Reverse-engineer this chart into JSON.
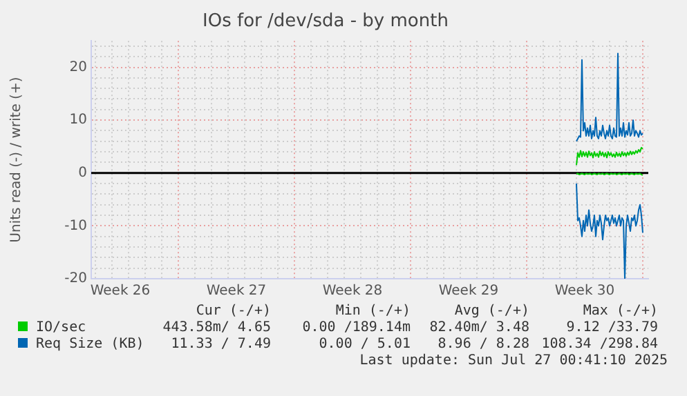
{
  "chart_data": {
    "type": "line",
    "title": "IOs for /dev/sda - by month",
    "ylabel": "Units read (-) / write (+)",
    "x": [
      "2025-07-23T00:00",
      "2025-07-23T02:00",
      "2025-07-23T04:00",
      "2025-07-23T06:00",
      "2025-07-23T08:00",
      "2025-07-23T10:00",
      "2025-07-23T12:00",
      "2025-07-23T14:00",
      "2025-07-23T16:00",
      "2025-07-23T18:00",
      "2025-07-23T20:00",
      "2025-07-23T22:00",
      "2025-07-24T00:00",
      "2025-07-24T02:00",
      "2025-07-24T04:00",
      "2025-07-24T06:00",
      "2025-07-24T08:00",
      "2025-07-24T10:00",
      "2025-07-24T12:00",
      "2025-07-24T14:00",
      "2025-07-24T16:00",
      "2025-07-24T18:00",
      "2025-07-24T20:00",
      "2025-07-24T22:00",
      "2025-07-25T00:00",
      "2025-07-25T02:00",
      "2025-07-25T04:00",
      "2025-07-25T06:00",
      "2025-07-25T08:00",
      "2025-07-25T10:00",
      "2025-07-25T12:00",
      "2025-07-25T14:00",
      "2025-07-25T16:00",
      "2025-07-25T18:00",
      "2025-07-25T20:00",
      "2025-07-25T22:00",
      "2025-07-26T00:00",
      "2025-07-26T02:00",
      "2025-07-26T04:00",
      "2025-07-26T06:00",
      "2025-07-26T08:00",
      "2025-07-26T10:00",
      "2025-07-26T12:00",
      "2025-07-26T14:00",
      "2025-07-26T16:00",
      "2025-07-26T18:00",
      "2025-07-26T20:00",
      "2025-07-26T22:00",
      "2025-07-27T00:00"
    ],
    "series": [
      {
        "name": "IO/sec",
        "color": "#00cc00",
        "values": [
          1.5,
          3.8,
          3,
          4.2,
          3.1,
          4,
          3.2,
          3.9,
          3,
          4.1,
          3.3,
          3.8,
          2.9,
          4,
          3.2,
          3.7,
          3,
          4.1,
          3.3,
          3.9,
          3.1,
          3.8,
          2.9,
          4,
          3.3,
          3.8,
          3.1,
          3.6,
          3,
          3.9,
          3.2,
          3.7,
          3.1,
          4,
          3.3,
          3.8,
          3.2,
          3.9,
          3.4,
          4.1,
          3.5,
          4,
          3.6,
          4.2,
          3.8,
          4.4,
          4,
          4.8,
          4.6
        ]
      },
      {
        "color": "#00cc00",
        "values": [
          -0.2,
          -0.1,
          -0.3,
          -0.2,
          -0.1,
          -0.2,
          -0.3,
          -0.1,
          -0.2,
          -0.2,
          -0.1,
          -0.3,
          -0.2,
          -0.1,
          -0.2,
          -0.3,
          -0.1,
          -0.2,
          -0.2,
          -0.1,
          -0.3,
          -0.2,
          -0.1,
          -0.2,
          -0.3,
          -0.1,
          -0.2,
          -0.2,
          -0.1,
          -0.3,
          -0.2,
          -0.1,
          -0.2,
          -0.3,
          -0.1,
          -0.2,
          -0.2,
          -0.1,
          -0.3,
          -0.2,
          -0.1,
          -0.2,
          -0.3,
          -0.1,
          -0.2,
          -0.2,
          -0.1,
          -0.3,
          -0.4
        ]
      },
      {
        "name": "Req Size (KB)",
        "color": "#0066b3",
        "values": [
          6,
          6.5,
          7,
          6.8,
          21.4,
          8,
          9.5,
          7,
          8.5,
          7,
          9,
          6.5,
          8,
          7,
          10.5,
          7,
          6.5,
          8,
          7,
          9,
          7.5,
          6.5,
          8,
          7,
          9,
          7,
          6.5,
          8.5,
          7,
          6.8,
          22.6,
          7,
          8.5,
          7,
          9.5,
          6.8,
          8,
          7.2,
          9.5,
          7,
          7.5,
          10,
          7,
          8,
          7.5,
          6.8,
          8,
          7.2,
          7.5
        ]
      },
      {
        "color": "#0066b3",
        "values": [
          -2,
          -9,
          -8.5,
          -10,
          -12,
          -9,
          -11,
          -8,
          -10,
          -7,
          -9.5,
          -11,
          -10,
          -8,
          -12,
          -9,
          -10,
          -8,
          -9.5,
          -12.6,
          -10,
          -8,
          -9,
          -8.5,
          -10,
          -9,
          -8,
          -9.5,
          -8.5,
          -10,
          -9,
          -8,
          -10,
          -8.5,
          -9,
          -19.9,
          -10,
          -8,
          -9.5,
          -11,
          -8.5,
          -9,
          -8,
          -10,
          -9,
          -7,
          -6,
          -8,
          -11.3
        ]
      }
    ],
    "xlim": [
      "2025-06-23T18:00",
      "2025-07-27T08:00"
    ],
    "xticks": [
      {
        "value": "2025-06-24",
        "label": null
      },
      {
        "value": "2025-06-25",
        "label": null
      },
      {
        "value": "2025-06-25T12:00",
        "label": "Week 26"
      },
      {
        "value": "2025-06-26",
        "label": null
      },
      {
        "value": "2025-06-27",
        "label": null
      },
      {
        "value": "2025-06-28",
        "label": null
      },
      {
        "value": "2025-06-29",
        "label": null
      },
      {
        "value": "2025-06-30",
        "label": null
      },
      {
        "value": "2025-07-01",
        "label": null
      },
      {
        "value": "2025-07-02",
        "label": null
      },
      {
        "value": "2025-07-02T12:00",
        "label": "Week 27"
      },
      {
        "value": "2025-07-03",
        "label": null
      },
      {
        "value": "2025-07-04",
        "label": null
      },
      {
        "value": "2025-07-05",
        "label": null
      },
      {
        "value": "2025-07-06",
        "label": null
      },
      {
        "value": "2025-07-07",
        "label": null
      },
      {
        "value": "2025-07-08",
        "label": null
      },
      {
        "value": "2025-07-09",
        "label": null
      },
      {
        "value": "2025-07-09T12:00",
        "label": "Week 28"
      },
      {
        "value": "2025-07-10",
        "label": null
      },
      {
        "value": "2025-07-11",
        "label": null
      },
      {
        "value": "2025-07-12",
        "label": null
      },
      {
        "value": "2025-07-13",
        "label": null
      },
      {
        "value": "2025-07-14",
        "label": null
      },
      {
        "value": "2025-07-15",
        "label": null
      },
      {
        "value": "2025-07-16",
        "label": null
      },
      {
        "value": "2025-07-16T12:00",
        "label": "Week 29"
      },
      {
        "value": "2025-07-17",
        "label": null
      },
      {
        "value": "2025-07-18",
        "label": null
      },
      {
        "value": "2025-07-19",
        "label": null
      },
      {
        "value": "2025-07-20",
        "label": null
      },
      {
        "value": "2025-07-21",
        "label": null
      },
      {
        "value": "2025-07-22",
        "label": null
      },
      {
        "value": "2025-07-23",
        "label": null
      },
      {
        "value": "2025-07-23T12:00",
        "label": "Week 30"
      },
      {
        "value": "2025-07-24",
        "label": null
      },
      {
        "value": "2025-07-25",
        "label": null
      },
      {
        "value": "2025-07-26",
        "label": null
      },
      {
        "value": "2025-07-27",
        "label": null
      }
    ],
    "ylim": [
      -20,
      25
    ],
    "yticks": [
      -20,
      {
        "value": -18,
        "label": null
      },
      {
        "value": -16,
        "label": null
      },
      {
        "value": -14,
        "label": null
      },
      {
        "value": -12,
        "label": null
      },
      -10,
      {
        "value": -8,
        "label": null
      },
      {
        "value": -6,
        "label": null
      },
      {
        "value": -4,
        "label": null
      },
      {
        "value": -2,
        "label": null
      },
      0,
      {
        "value": 2,
        "label": null
      },
      {
        "value": 4,
        "label": null
      },
      {
        "value": 6,
        "label": null
      },
      {
        "value": 8,
        "label": null
      },
      10,
      {
        "value": 12,
        "label": null
      },
      {
        "value": 14,
        "label": null
      },
      {
        "value": 16,
        "label": null
      },
      {
        "value": 18,
        "label": null
      },
      20,
      {
        "value": 22,
        "label": null
      },
      {
        "value": 24,
        "label": null
      }
    ],
    "ref_lines": [
      {
        "axis": "y",
        "value": 0,
        "color": "#000000"
      }
    ],
    "grid": true,
    "legend": "bottom",
    "marker": "none",
    "line_style": "solid",
    "annotations": [
      "Cur (-/+)",
      "Min (-/+)",
      "Avg (-/+)",
      "Max (-/+)",
      "443.58m/ 4.65",
      "0.00 /189.14m",
      "82.40m/ 3.48",
      "9.12 /33.79",
      "11.33 / 7.49",
      "0.00 / 5.01",
      "8.96 / 8.28",
      "108.34 /298.84",
      "Last update: Sun Jul 27 00:41:10 2025"
    ]
  }
}
